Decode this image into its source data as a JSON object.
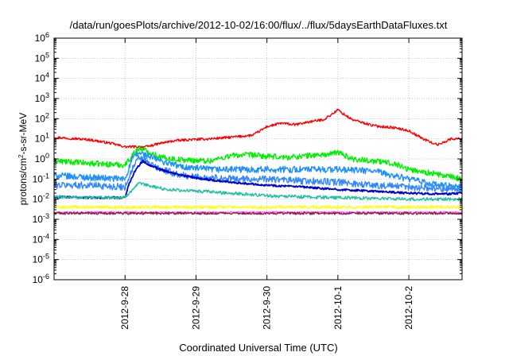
{
  "chart_data": {
    "type": "line",
    "title": "/data/run/goesPlots/archive/2012-10-02/16:00/flux/../flux/5daysEarthDataFluxes.txt",
    "xlabel": "Coordinated Universal Time (UTC)",
    "ylabel": {
      "pre": "protons/cm",
      "sup": "2",
      "post": "-s-sr-MeV"
    },
    "x_range": [
      "2012-09-27 00:00",
      "2012-10-02 18:00"
    ],
    "x_ticks": [
      "2012-9-28",
      "2012-9-29",
      "2012-9-30",
      "2012-10-1",
      "2012-10-2"
    ],
    "y_scale": "log",
    "y_range": [
      1e-06,
      1000000.0
    ],
    "y_ticks": [
      {
        "base": "10",
        "exp": "6"
      },
      {
        "base": "10",
        "exp": "5"
      },
      {
        "base": "10",
        "exp": "4"
      },
      {
        "base": "10",
        "exp": "3"
      },
      {
        "base": "10",
        "exp": "2"
      },
      {
        "base": "10",
        "exp": "1"
      },
      {
        "base": "10",
        "exp": "0"
      },
      {
        "base": "10",
        "exp": "-1"
      },
      {
        "base": "10",
        "exp": "-2"
      },
      {
        "base": "10",
        "exp": "-3"
      },
      {
        "base": "10",
        "exp": "-4"
      },
      {
        "base": "10",
        "exp": "-5"
      },
      {
        "base": "10",
        "exp": "-6"
      }
    ],
    "grid": true,
    "series": [
      {
        "color": "#ff0000",
        "noise": 0.06,
        "points": [
          [
            0,
            12
          ],
          [
            0.5,
            9
          ],
          [
            0.8,
            6
          ],
          [
            1.0,
            4
          ],
          [
            1.3,
            4
          ],
          [
            1.5,
            6
          ],
          [
            1.7,
            8
          ],
          [
            1.9,
            9
          ],
          [
            2.2,
            10
          ],
          [
            2.5,
            12
          ],
          [
            2.8,
            15
          ],
          [
            3.0,
            40
          ],
          [
            3.2,
            60
          ],
          [
            3.4,
            50
          ],
          [
            3.6,
            70
          ],
          [
            3.8,
            90
          ],
          [
            3.95,
            200
          ],
          [
            4.0,
            280
          ],
          [
            4.05,
            200
          ],
          [
            4.2,
            90
          ],
          [
            4.5,
            45
          ],
          [
            4.8,
            35
          ],
          [
            5.0,
            25
          ],
          [
            5.2,
            10
          ],
          [
            5.4,
            5
          ],
          [
            5.6,
            10
          ],
          [
            5.75,
            10
          ]
        ]
      },
      {
        "color": "#00ee00",
        "noise": 0.14,
        "points": [
          [
            0,
            0.8
          ],
          [
            0.5,
            0.6
          ],
          [
            1.0,
            0.5
          ],
          [
            1.1,
            1.5
          ],
          [
            1.2,
            3.5
          ],
          [
            1.3,
            2.5
          ],
          [
            1.5,
            1.2
          ],
          [
            1.8,
            0.9
          ],
          [
            2.2,
            0.8
          ],
          [
            2.5,
            1.5
          ],
          [
            2.8,
            1.6
          ],
          [
            3.0,
            1.3
          ],
          [
            3.3,
            1.2
          ],
          [
            3.6,
            1.5
          ],
          [
            3.9,
            1.7
          ],
          [
            4.0,
            2.2
          ],
          [
            4.2,
            1.0
          ],
          [
            4.5,
            0.8
          ],
          [
            4.8,
            0.6
          ],
          [
            5.0,
            0.3
          ],
          [
            5.3,
            0.2
          ],
          [
            5.75,
            0.1
          ]
        ]
      },
      {
        "color": "#1e90ff",
        "noise": 0.16,
        "points": [
          [
            0,
            0.15
          ],
          [
            0.5,
            0.12
          ],
          [
            1.0,
            0.1
          ],
          [
            1.1,
            1.0
          ],
          [
            1.2,
            2.0
          ],
          [
            1.3,
            1.5
          ],
          [
            1.5,
            0.8
          ],
          [
            1.8,
            0.4
          ],
          [
            2.2,
            0.3
          ],
          [
            2.5,
            0.3
          ],
          [
            3.0,
            0.3
          ],
          [
            3.5,
            0.3
          ],
          [
            4.0,
            0.3
          ],
          [
            4.5,
            0.25
          ],
          [
            5.0,
            0.1
          ],
          [
            5.4,
            0.05
          ],
          [
            5.75,
            0.04
          ]
        ]
      },
      {
        "color": "#3388ff",
        "noise": 0.17,
        "points": [
          [
            0,
            0.05
          ],
          [
            0.5,
            0.05
          ],
          [
            1.0,
            0.04
          ],
          [
            1.1,
            0.3
          ],
          [
            1.2,
            1.2
          ],
          [
            1.3,
            0.7
          ],
          [
            1.5,
            0.3
          ],
          [
            1.8,
            0.15
          ],
          [
            2.2,
            0.12
          ],
          [
            2.5,
            0.1
          ],
          [
            3.0,
            0.1
          ],
          [
            3.5,
            0.08
          ],
          [
            4.0,
            0.07
          ],
          [
            4.5,
            0.05
          ],
          [
            5.0,
            0.04
          ],
          [
            5.75,
            0.03
          ]
        ]
      },
      {
        "color": "#0000cc",
        "noise": 0.05,
        "points": [
          [
            0,
            0.013
          ],
          [
            0.5,
            0.012
          ],
          [
            1.0,
            0.012
          ],
          [
            1.05,
            0.05
          ],
          [
            1.15,
            0.3
          ],
          [
            1.25,
            0.8
          ],
          [
            1.3,
            0.6
          ],
          [
            1.5,
            0.3
          ],
          [
            1.8,
            0.15
          ],
          [
            2.2,
            0.09
          ],
          [
            2.5,
            0.07
          ],
          [
            3.0,
            0.05
          ],
          [
            3.5,
            0.04
          ],
          [
            4.0,
            0.03
          ],
          [
            4.5,
            0.025
          ],
          [
            5.0,
            0.02
          ],
          [
            5.5,
            0.018
          ],
          [
            5.75,
            0.02
          ]
        ]
      },
      {
        "color": "#20c0a0",
        "noise": 0.08,
        "points": [
          [
            0,
            0.013
          ],
          [
            0.5,
            0.012
          ],
          [
            1.0,
            0.012
          ],
          [
            1.1,
            0.03
          ],
          [
            1.2,
            0.06
          ],
          [
            1.3,
            0.05
          ],
          [
            1.6,
            0.03
          ],
          [
            2.0,
            0.025
          ],
          [
            2.5,
            0.02
          ],
          [
            3.0,
            0.015
          ],
          [
            3.5,
            0.013
          ],
          [
            4.0,
            0.012
          ],
          [
            4.5,
            0.011
          ],
          [
            5.0,
            0.01
          ],
          [
            5.75,
            0.01
          ]
        ]
      },
      {
        "color": "#ffff00",
        "noise": 0.07,
        "points": [
          [
            0,
            0.004
          ],
          [
            2.0,
            0.004
          ],
          [
            4.0,
            0.004
          ],
          [
            5.75,
            0.004
          ]
        ]
      },
      {
        "color": "#ff66ff",
        "noise": 0.05,
        "points": [
          [
            0,
            0.0022
          ],
          [
            2.0,
            0.0022
          ],
          [
            4.0,
            0.0022
          ],
          [
            5.75,
            0.0022
          ]
        ]
      },
      {
        "color": "#8b2252",
        "noise": 0.06,
        "points": [
          [
            0,
            0.002
          ],
          [
            2.0,
            0.002
          ],
          [
            4.0,
            0.002
          ],
          [
            5.75,
            0.002
          ]
        ]
      }
    ]
  }
}
